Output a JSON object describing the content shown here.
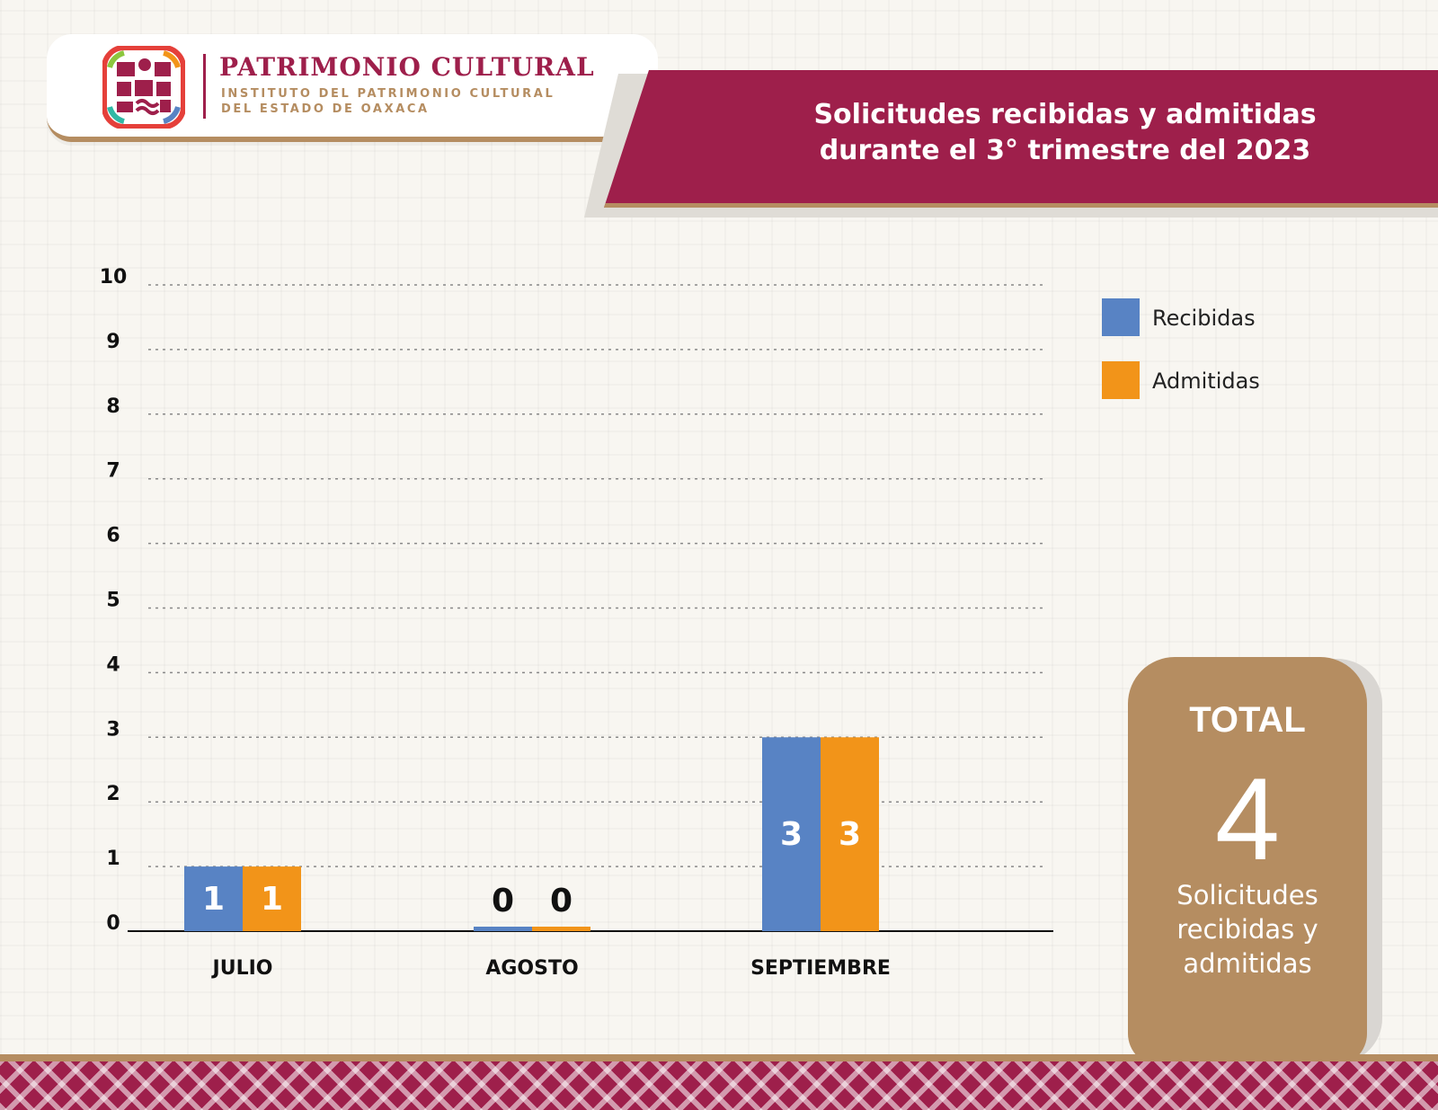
{
  "header": {
    "logo_title": "PATRIMONIO CULTURAL",
    "logo_subtitle_1": "INSTITUTO DEL PATRIMONIO CULTURAL",
    "logo_subtitle_2": "DEL ESTADO DE OAXACA",
    "banner_title_1": "Solicitudes recibidas y admitidas",
    "banner_title_2": "durante el 3° trimestre del 2023"
  },
  "colors": {
    "brand": "#9e1f4b",
    "accent": "#b58d61",
    "recibidas": "#5883c4",
    "admitidas": "#f29419"
  },
  "chart_data": {
    "type": "bar",
    "categories": [
      "JULIO",
      "AGOSTO",
      "SEPTIEMBRE"
    ],
    "series": [
      {
        "name": "Recibidas",
        "values": [
          1,
          0,
          3
        ],
        "color": "#5883c4"
      },
      {
        "name": "Admitidas",
        "values": [
          1,
          0,
          3
        ],
        "color": "#f29419"
      }
    ],
    "ylim": [
      0,
      10
    ],
    "yticks": [
      0,
      1,
      2,
      3,
      4,
      5,
      6,
      7,
      8,
      9,
      10
    ],
    "grid": true,
    "legend_position": "right"
  },
  "total": {
    "label": "TOTAL",
    "value": "4",
    "description": "Solicitudes recibidas y admitidas"
  }
}
